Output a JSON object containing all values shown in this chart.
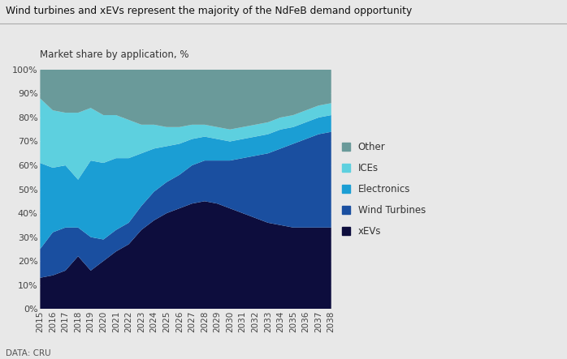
{
  "title": "Wind turbines and xEVs represent the majority of the NdFeB demand opportunity",
  "subtitle": "Market share by application, %",
  "footnote": "DATA: CRU",
  "years": [
    2015,
    2016,
    2017,
    2018,
    2019,
    2020,
    2021,
    2022,
    2023,
    2024,
    2025,
    2026,
    2027,
    2028,
    2029,
    2030,
    2031,
    2032,
    2033,
    2034,
    2035,
    2036,
    2037,
    2038
  ],
  "series": {
    "xEVs": [
      13,
      14,
      16,
      22,
      16,
      20,
      24,
      27,
      33,
      37,
      40,
      42,
      44,
      45,
      44,
      42,
      40,
      38,
      36,
      35,
      34,
      34,
      34,
      34
    ],
    "Wind Turbines": [
      12,
      18,
      18,
      12,
      14,
      9,
      9,
      9,
      10,
      12,
      13,
      14,
      16,
      17,
      18,
      20,
      23,
      26,
      29,
      32,
      35,
      37,
      39,
      40
    ],
    "Electronics": [
      36,
      27,
      26,
      20,
      32,
      32,
      30,
      27,
      22,
      18,
      15,
      13,
      11,
      10,
      9,
      8,
      8,
      8,
      8,
      8,
      7,
      7,
      7,
      7
    ],
    "ICEs": [
      27,
      24,
      22,
      28,
      22,
      20,
      18,
      16,
      12,
      10,
      8,
      7,
      6,
      5,
      5,
      5,
      5,
      5,
      5,
      5,
      5,
      5,
      5,
      5
    ],
    "Other": [
      12,
      17,
      18,
      18,
      16,
      19,
      19,
      21,
      23,
      23,
      24,
      24,
      23,
      23,
      24,
      25,
      24,
      23,
      22,
      20,
      19,
      17,
      15,
      14
    ]
  },
  "colors": {
    "xEVs": "#0d0d3d",
    "Wind Turbines": "#1a4fa0",
    "Electronics": "#1b9ed4",
    "ICEs": "#5dd0df",
    "Other": "#6a9a9a"
  },
  "background_color": "#e8e8e8",
  "ylim": [
    0,
    100
  ],
  "legend_order": [
    "Other",
    "ICEs",
    "Electronics",
    "Wind Turbines",
    "xEVs"
  ]
}
